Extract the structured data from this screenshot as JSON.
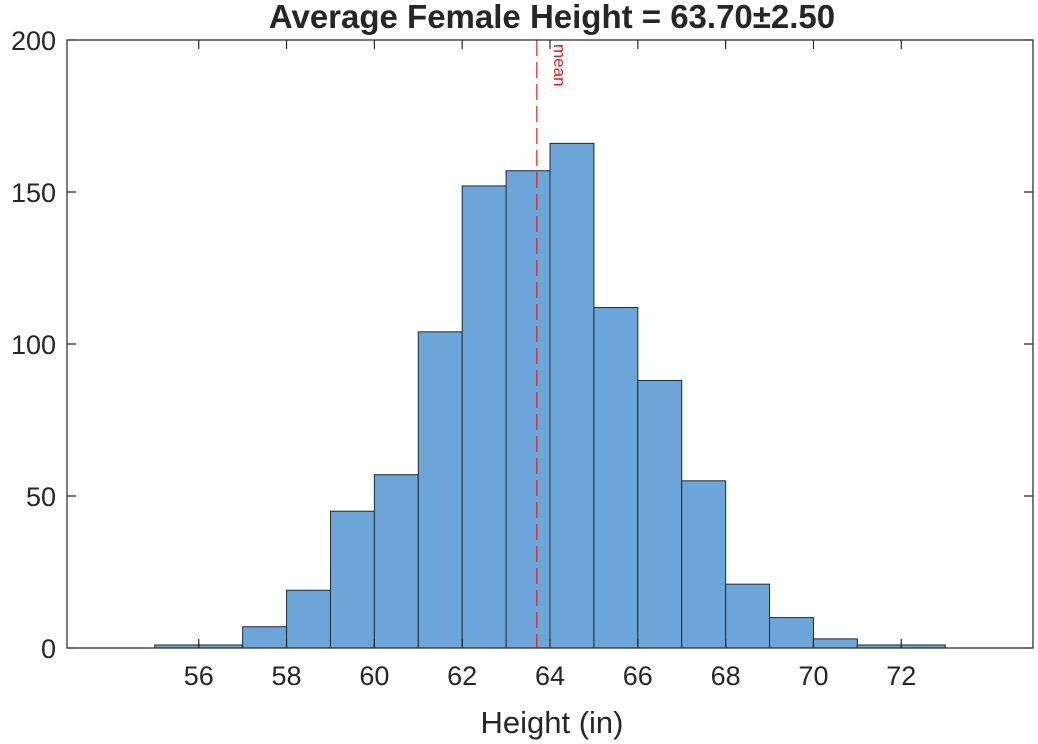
{
  "chart_data": {
    "type": "bar",
    "subtype": "histogram",
    "title": "Average Female Height = 63.70±2.50",
    "xlabel": "Height (in)",
    "ylabel": "",
    "xlim": [
      53,
      75
    ],
    "ylim": [
      0,
      200
    ],
    "xticks": [
      56,
      58,
      60,
      62,
      64,
      66,
      68,
      70,
      72
    ],
    "yticks": [
      0,
      50,
      100,
      150,
      200
    ],
    "bin_edges": [
      55,
      56,
      57,
      58,
      59,
      60,
      61,
      62,
      63,
      64,
      65,
      66,
      67,
      68,
      69,
      70,
      71,
      72,
      73
    ],
    "values": [
      1,
      1,
      7,
      19,
      45,
      57,
      104,
      152,
      157,
      166,
      112,
      88,
      55,
      21,
      10,
      3,
      1,
      1
    ],
    "bar_color": "#6ca6d8",
    "bar_edge_color": "#1e2a33",
    "mean": 63.7,
    "mean_label": "mean",
    "mean_line_color": "#e41a1c",
    "grid": false,
    "box": true
  }
}
